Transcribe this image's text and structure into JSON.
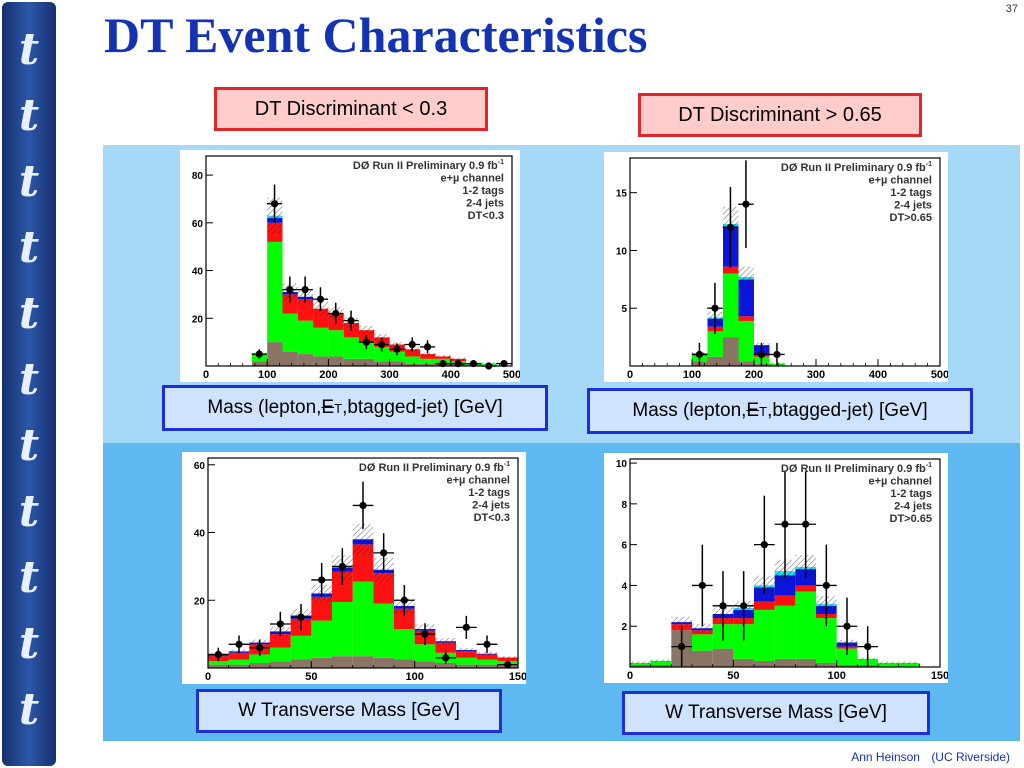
{
  "sidebar": {
    "letter": "t"
  },
  "title": "DT Event Characteristics",
  "page_number": "37",
  "headers": {
    "low": "DT Discriminant < 0.3",
    "high": "DT Discriminant > 0.65"
  },
  "xlabels": {
    "mass": {
      "prefix": "Mass (lepton,",
      "slash": "E",
      "sub": "T",
      "suffix": ",btagged-jet)   [GeV]"
    },
    "wmt": "W Transverse Mass   [GeV]"
  },
  "legend": {
    "experiment": "DØ Run II Preliminary 0.9 fb",
    "lumi_sup": "-1",
    "channel": "e+µ channel",
    "tags": "1-2 tags",
    "jets": "2-4 jets",
    "cut_low": "DT<0.3",
    "cut_high": "DT>0.65"
  },
  "colors": {
    "green": "#00ff00",
    "red": "#ff1111",
    "blue": "#0a14dd",
    "brown": "#8a7466",
    "cyan": "#22ddee",
    "title": "#1433b4"
  },
  "footer": {
    "author": "Ann Heinson",
    "affiliation": "(UC Riverside)"
  },
  "chart_data": [
    {
      "type": "bar",
      "id": "mass_low",
      "xlim": [
        0,
        500
      ],
      "ylim": [
        0,
        88
      ],
      "xticks": [
        0,
        100,
        200,
        300,
        400,
        500
      ],
      "yticks": [
        20,
        40,
        60,
        80
      ],
      "bin_edges": [
        75,
        100,
        125,
        150,
        175,
        200,
        225,
        250,
        275,
        300,
        325,
        350,
        375,
        400,
        425,
        450,
        475,
        500
      ],
      "stack": [
        {
          "name": "brown",
          "values": [
            2,
            10,
            6,
            5,
            4,
            4,
            3,
            3,
            2,
            2,
            1,
            1,
            1,
            1,
            0,
            0,
            0
          ]
        },
        {
          "name": "green",
          "values": [
            3,
            42,
            16,
            14,
            12,
            11,
            9,
            7,
            6,
            4,
            3,
            2,
            2,
            1,
            1,
            1,
            0
          ]
        },
        {
          "name": "red",
          "values": [
            0,
            8,
            8,
            9,
            8,
            7,
            6,
            5,
            4,
            3,
            3,
            2,
            1,
            1,
            0,
            0,
            0
          ]
        },
        {
          "name": "blue",
          "values": [
            0,
            2,
            1,
            1,
            0,
            0,
            0,
            0,
            0,
            0,
            0,
            0,
            0,
            0,
            0,
            0,
            0
          ]
        },
        {
          "name": "cyan",
          "values": [
            0,
            1,
            0,
            0,
            0,
            0,
            0,
            0,
            0,
            0,
            0,
            0,
            0,
            0,
            0,
            0,
            0
          ]
        }
      ],
      "data_points": [
        {
          "x": 87,
          "y": 5,
          "err": 2
        },
        {
          "x": 112,
          "y": 68,
          "err": 8
        },
        {
          "x": 137,
          "y": 32,
          "err": 5.5
        },
        {
          "x": 162,
          "y": 32,
          "err": 5.5
        },
        {
          "x": 187,
          "y": 28,
          "err": 5
        },
        {
          "x": 212,
          "y": 22,
          "err": 4.5
        },
        {
          "x": 237,
          "y": 19,
          "err": 4.2
        },
        {
          "x": 262,
          "y": 10,
          "err": 3
        },
        {
          "x": 287,
          "y": 9,
          "err": 3
        },
        {
          "x": 312,
          "y": 7,
          "err": 2.5
        },
        {
          "x": 337,
          "y": 9,
          "err": 3
        },
        {
          "x": 362,
          "y": 8,
          "err": 2.8
        },
        {
          "x": 387,
          "y": 1,
          "err": 1
        },
        {
          "x": 412,
          "y": 1,
          "err": 1
        },
        {
          "x": 437,
          "y": 1,
          "err": 1
        },
        {
          "x": 462,
          "y": 0,
          "err": 0
        },
        {
          "x": 487,
          "y": 1,
          "err": 1
        }
      ]
    },
    {
      "type": "bar",
      "id": "mass_high",
      "xlim": [
        0,
        500
      ],
      "ylim": [
        0,
        18
      ],
      "xticks": [
        0,
        100,
        200,
        300,
        400,
        500
      ],
      "yticks": [
        5,
        10,
        15
      ],
      "bin_edges": [
        50,
        75,
        100,
        125,
        150,
        175,
        200,
        225,
        250,
        275,
        300,
        325
      ],
      "stack": [
        {
          "name": "brown",
          "values": [
            0,
            0,
            0.4,
            0.8,
            2.5,
            0.4,
            0.2,
            0,
            0,
            0,
            0
          ]
        },
        {
          "name": "green",
          "values": [
            0,
            0,
            0.5,
            2.2,
            5.5,
            3.5,
            0.6,
            0.2,
            0,
            0,
            0
          ]
        },
        {
          "name": "red",
          "values": [
            0,
            0,
            0.2,
            0.4,
            0.6,
            0.4,
            0.2,
            0,
            0,
            0,
            0
          ]
        },
        {
          "name": "blue",
          "values": [
            0,
            0,
            0,
            0.7,
            3.5,
            3.2,
            0.8,
            0,
            0,
            0,
            0
          ]
        },
        {
          "name": "cyan",
          "values": [
            0,
            0,
            0,
            0.1,
            0.2,
            0.2,
            0,
            0,
            0,
            0,
            0
          ]
        }
      ],
      "data_points": [
        {
          "x": 112,
          "y": 1,
          "err": 1
        },
        {
          "x": 137,
          "y": 5,
          "err": 2.2
        },
        {
          "x": 162,
          "y": 12,
          "err": 3.5
        },
        {
          "x": 187,
          "y": 14,
          "err": 3.8
        },
        {
          "x": 212,
          "y": 1,
          "err": 1
        },
        {
          "x": 237,
          "y": 1,
          "err": 1
        }
      ]
    },
    {
      "type": "bar",
      "id": "wmt_low",
      "xlim": [
        0,
        150
      ],
      "ylim": [
        0,
        62
      ],
      "xticks": [
        0,
        50,
        100,
        150
      ],
      "yticks": [
        20,
        40,
        60
      ],
      "bin_edges": [
        0,
        10,
        20,
        30,
        40,
        50,
        60,
        70,
        80,
        90,
        100,
        110,
        120,
        130,
        140,
        150
      ],
      "stack": [
        {
          "name": "brown",
          "values": [
            1,
            1,
            1.5,
            2,
            2.5,
            3,
            3.5,
            3.5,
            3,
            2.5,
            2,
            1.5,
            1,
            1,
            1
          ]
        },
        {
          "name": "green",
          "values": [
            1,
            1.5,
            2.5,
            4,
            7,
            11,
            16,
            22,
            16,
            9,
            5,
            3,
            2,
            1.5,
            1
          ]
        },
        {
          "name": "red",
          "values": [
            1.5,
            2,
            3,
            4,
            5,
            7,
            9,
            11,
            9,
            6,
            4,
            3,
            2,
            1.5,
            1
          ]
        },
        {
          "name": "blue",
          "values": [
            0.3,
            0.4,
            0.5,
            0.8,
            1,
            1,
            1.2,
            1.5,
            1,
            0.8,
            0.5,
            0.4,
            0.3,
            0.2,
            0.1
          ]
        },
        {
          "name": "cyan",
          "values": [
            0,
            0,
            0,
            0,
            0,
            0,
            0,
            0,
            0,
            0,
            0,
            0,
            0,
            0,
            0
          ]
        }
      ],
      "data_points": [
        {
          "x": 5,
          "y": 4,
          "err": 2
        },
        {
          "x": 15,
          "y": 7,
          "err": 2.6
        },
        {
          "x": 25,
          "y": 6,
          "err": 2.4
        },
        {
          "x": 35,
          "y": 13,
          "err": 3.6
        },
        {
          "x": 45,
          "y": 15,
          "err": 3.9
        },
        {
          "x": 55,
          "y": 26,
          "err": 5
        },
        {
          "x": 65,
          "y": 30,
          "err": 5.4
        },
        {
          "x": 75,
          "y": 48,
          "err": 7
        },
        {
          "x": 85,
          "y": 34,
          "err": 5.8
        },
        {
          "x": 95,
          "y": 20,
          "err": 4.5
        },
        {
          "x": 105,
          "y": 10,
          "err": 3.2
        },
        {
          "x": 115,
          "y": 3,
          "err": 1.7
        },
        {
          "x": 125,
          "y": 12,
          "err": 3.4
        },
        {
          "x": 135,
          "y": 7,
          "err": 2.6
        },
        {
          "x": 145,
          "y": 1,
          "err": 1
        }
      ]
    },
    {
      "type": "bar",
      "id": "wmt_high",
      "xlim": [
        0,
        150
      ],
      "ylim": [
        0,
        10.2
      ],
      "xticks": [
        0,
        50,
        100,
        150
      ],
      "yticks": [
        2,
        4,
        6,
        8,
        10
      ],
      "bin_edges": [
        0,
        10,
        20,
        30,
        40,
        50,
        60,
        70,
        80,
        90,
        100,
        110,
        120,
        130,
        140,
        150
      ],
      "stack": [
        {
          "name": "brown",
          "values": [
            0.1,
            0.1,
            1.8,
            0.8,
            0.9,
            0.4,
            0.3,
            0.4,
            0.4,
            0.2,
            0.1,
            0.1,
            0,
            0,
            0
          ]
        },
        {
          "name": "green",
          "values": [
            0.1,
            0.2,
            0,
            0.8,
            1.2,
            1.7,
            2.5,
            2.6,
            3.3,
            2.2,
            0.8,
            0.3,
            0.2,
            0.2,
            0
          ]
        },
        {
          "name": "red",
          "values": [
            0,
            0,
            0.3,
            0.2,
            0.3,
            0.3,
            0.4,
            0.5,
            0.3,
            0.2,
            0.1,
            0,
            0,
            0,
            0
          ]
        },
        {
          "name": "blue",
          "values": [
            0,
            0,
            0.1,
            0.1,
            0.2,
            0.4,
            0.7,
            1.0,
            0.8,
            0.4,
            0.2,
            0,
            0,
            0,
            0
          ]
        },
        {
          "name": "cyan",
          "values": [
            0,
            0,
            0,
            0,
            0,
            0.1,
            0.1,
            0.2,
            0.1,
            0.1,
            0,
            0,
            0,
            0,
            0
          ]
        }
      ],
      "data_points": [
        {
          "x": 25,
          "y": 1,
          "err": 1
        },
        {
          "x": 35,
          "y": 4,
          "err": 2
        },
        {
          "x": 45,
          "y": 3,
          "err": 1.7
        },
        {
          "x": 55,
          "y": 3,
          "err": 1.7
        },
        {
          "x": 65,
          "y": 6,
          "err": 2.4
        },
        {
          "x": 75,
          "y": 7,
          "err": 2.6
        },
        {
          "x": 85,
          "y": 7,
          "err": 2.6
        },
        {
          "x": 95,
          "y": 4,
          "err": 2
        },
        {
          "x": 105,
          "y": 2,
          "err": 1.4
        },
        {
          "x": 115,
          "y": 1,
          "err": 1
        }
      ]
    }
  ]
}
